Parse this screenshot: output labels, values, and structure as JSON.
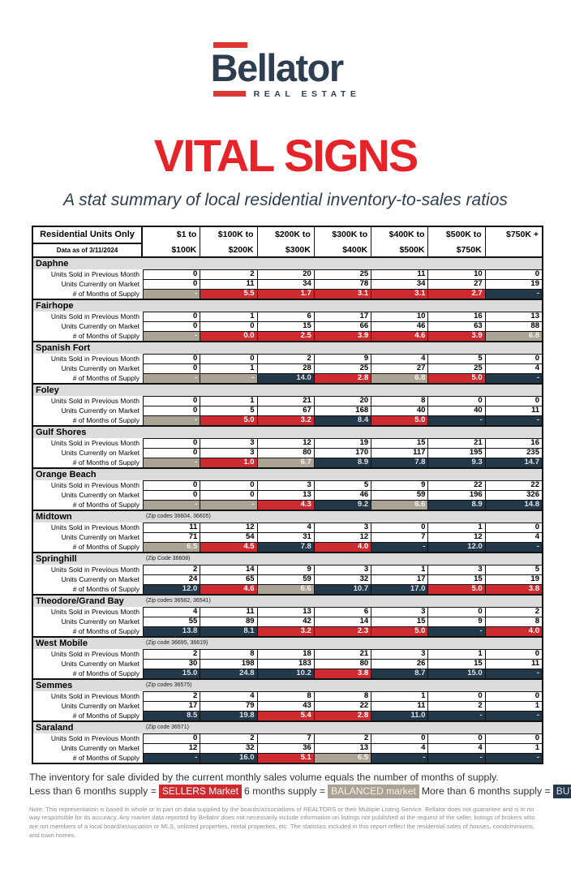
{
  "logo": {
    "brand": "Bellator",
    "tagline": "REAL ESTATE",
    "red": "#DB3832",
    "navy": "#2D3E50"
  },
  "title": "VITAL SIGNS",
  "title_color": "#E62329",
  "subtitle": "A stat summary of local residential inventory-to-sales ratios",
  "table": {
    "corner_line1": "Residential Units Only",
    "corner_line2": "Data as of 3/11/2024",
    "price_columns": [
      [
        "$1 to",
        "$100K"
      ],
      [
        "$100K to",
        "$200K"
      ],
      [
        "$200K to",
        "$300K"
      ],
      [
        "$300K to",
        "$400K"
      ],
      [
        "$400K to",
        "$500K"
      ],
      [
        "$500K to",
        "$750K"
      ],
      [
        "$750K +",
        ""
      ]
    ],
    "row_labels": [
      "Units Sold in Previous Month",
      "Units Currently on Market",
      "# of Months of Supply"
    ],
    "colors": {
      "sellers": "#CE2B30",
      "balanced": "#ABA393",
      "buyers": "#233849",
      "region_header_bg": "#DCDCDC"
    },
    "regions": [
      {
        "name": "Daphne",
        "zip": "",
        "sold": [
          "0",
          "2",
          "20",
          "25",
          "11",
          "10",
          "0"
        ],
        "market": [
          "0",
          "11",
          "34",
          "78",
          "34",
          "27",
          "19"
        ],
        "supply": [
          "-",
          "5.5",
          "1.7",
          "3.1",
          "3.1",
          "2.7",
          "-"
        ],
        "supply_status": [
          "balanced",
          "sellers",
          "sellers",
          "sellers",
          "sellers",
          "sellers",
          "buyers"
        ]
      },
      {
        "name": "Fairhope",
        "zip": "",
        "sold": [
          "0",
          "1",
          "6",
          "17",
          "10",
          "16",
          "13"
        ],
        "market": [
          "0",
          "0",
          "15",
          "66",
          "46",
          "63",
          "88"
        ],
        "supply": [
          "-",
          "0.0",
          "2.5",
          "3.9",
          "4.6",
          "3.9",
          "6.8"
        ],
        "supply_status": [
          "balanced",
          "sellers",
          "sellers",
          "sellers",
          "sellers",
          "sellers",
          "balanced"
        ]
      },
      {
        "name": "Spanish Fort",
        "zip": "",
        "sold": [
          "0",
          "0",
          "2",
          "9",
          "4",
          "5",
          "0"
        ],
        "market": [
          "0",
          "1",
          "28",
          "25",
          "27",
          "25",
          "4"
        ],
        "supply": [
          "-",
          "-",
          "14.0",
          "2.8",
          "6.8",
          "5.0",
          "-"
        ],
        "supply_status": [
          "balanced",
          "balanced",
          "buyers",
          "sellers",
          "balanced",
          "sellers",
          "buyers"
        ]
      },
      {
        "name": "Foley",
        "zip": "",
        "sold": [
          "0",
          "1",
          "21",
          "20",
          "8",
          "0",
          "0"
        ],
        "market": [
          "0",
          "5",
          "67",
          "168",
          "40",
          "40",
          "11"
        ],
        "supply": [
          "-",
          "5.0",
          "3.2",
          "8.4",
          "5.0",
          "-",
          "-"
        ],
        "supply_status": [
          "balanced",
          "sellers",
          "sellers",
          "buyers",
          "sellers",
          "buyers",
          "buyers"
        ]
      },
      {
        "name": "Gulf Shores",
        "zip": "",
        "sold": [
          "0",
          "3",
          "12",
          "19",
          "15",
          "21",
          "16"
        ],
        "market": [
          "0",
          "3",
          "80",
          "170",
          "117",
          "195",
          "235"
        ],
        "supply": [
          "-",
          "1.0",
          "6.7",
          "8.9",
          "7.8",
          "9.3",
          "14.7"
        ],
        "supply_status": [
          "balanced",
          "sellers",
          "balanced",
          "buyers",
          "buyers",
          "buyers",
          "buyers"
        ]
      },
      {
        "name": "Orange Beach",
        "zip": "",
        "sold": [
          "0",
          "0",
          "3",
          "5",
          "9",
          "22",
          "22"
        ],
        "market": [
          "0",
          "0",
          "13",
          "46",
          "59",
          "196",
          "326"
        ],
        "supply": [
          "-",
          "-",
          "4.3",
          "9.2",
          "6.6",
          "8.9",
          "14.8"
        ],
        "supply_status": [
          "balanced",
          "balanced",
          "sellers",
          "buyers",
          "balanced",
          "buyers",
          "buyers"
        ]
      },
      {
        "name": "Midtown",
        "zip": "(Zip codes 36604, 36605)",
        "sold": [
          "11",
          "12",
          "4",
          "3",
          "0",
          "1",
          "0"
        ],
        "market": [
          "71",
          "54",
          "31",
          "12",
          "7",
          "12",
          "4"
        ],
        "supply": [
          "6.5",
          "4.5",
          "7.8",
          "4.0",
          "-",
          "12.0",
          "-"
        ],
        "supply_status": [
          "balanced",
          "sellers",
          "buyers",
          "sellers",
          "buyers",
          "buyers",
          "buyers"
        ]
      },
      {
        "name": "Springhill",
        "zip": "(Zip Code 36608)",
        "sold": [
          "2",
          "14",
          "9",
          "3",
          "1",
          "3",
          "5"
        ],
        "market": [
          "24",
          "65",
          "59",
          "32",
          "17",
          "15",
          "19"
        ],
        "supply": [
          "12.0",
          "4.6",
          "6.6",
          "10.7",
          "17.0",
          "5.0",
          "3.8"
        ],
        "supply_status": [
          "buyers",
          "sellers",
          "balanced",
          "buyers",
          "buyers",
          "sellers",
          "sellers"
        ]
      },
      {
        "name": "Theodore/Grand Bay",
        "zip": "(Zip codes 36582, 36541)",
        "sold": [
          "4",
          "11",
          "13",
          "6",
          "3",
          "0",
          "2"
        ],
        "market": [
          "55",
          "89",
          "42",
          "14",
          "15",
          "9",
          "8"
        ],
        "supply": [
          "13.8",
          "8.1",
          "3.2",
          "2.3",
          "5.0",
          "-",
          "4.0"
        ],
        "supply_status": [
          "buyers",
          "buyers",
          "sellers",
          "sellers",
          "sellers",
          "buyers",
          "sellers"
        ]
      },
      {
        "name": "West Mobile",
        "zip": "(Zip code 36695, 36619)",
        "sold": [
          "2",
          "8",
          "18",
          "21",
          "3",
          "1",
          "0"
        ],
        "market": [
          "30",
          "198",
          "183",
          "80",
          "26",
          "15",
          "11"
        ],
        "supply": [
          "15.0",
          "24.8",
          "10.2",
          "3.8",
          "8.7",
          "15.0",
          "-"
        ],
        "supply_status": [
          "buyers",
          "buyers",
          "buyers",
          "sellers",
          "buyers",
          "buyers",
          "buyers"
        ]
      },
      {
        "name": "Semmes",
        "zip": "(Zip codes 36575)",
        "sold": [
          "2",
          "4",
          "8",
          "8",
          "1",
          "0",
          "0"
        ],
        "market": [
          "17",
          "79",
          "43",
          "22",
          "11",
          "2",
          "1"
        ],
        "supply": [
          "8.5",
          "19.8",
          "5.4",
          "2.8",
          "11.0",
          "-",
          "-"
        ],
        "supply_status": [
          "buyers",
          "buyers",
          "sellers",
          "sellers",
          "buyers",
          "buyers",
          "buyers"
        ]
      },
      {
        "name": "Saraland",
        "zip": "(Zip code 36571)",
        "sold": [
          "0",
          "2",
          "7",
          "2",
          "0",
          "0",
          "0"
        ],
        "market": [
          "12",
          "32",
          "36",
          "13",
          "4",
          "4",
          "1"
        ],
        "supply": [
          "-",
          "16.0",
          "5.1",
          "6.5",
          "-",
          "-",
          "-"
        ],
        "supply_status": [
          "buyers",
          "buyers",
          "sellers",
          "balanced",
          "buyers",
          "buyers",
          "buyers"
        ]
      }
    ]
  },
  "legend": {
    "line1": "The inventory for sale divided by the current monthly sales volume equals the number of months of supply.",
    "sellers_prefix": "Less than 6 months supply =",
    "sellers_label": "SELLERS Market",
    "balanced_prefix": "6 months supply =",
    "balanced_label": "BALANCED market",
    "buyers_prefix": " More than 6 months supply =",
    "buyers_label": "BUYERS Market"
  },
  "note": "Note: This representation is based in whole or in part on data supplied by the boards/associations of REALTORS or their Multiple Listing Service. Bellator does not guarantee and is in no way responsible for its accuracy. Any market data reported by Bellator does not necessarily include information on listings not published at the request of the seller, listings of brokers who are not members of a local board/association or MLS, unlisted properties, rental properties, etc. The statistics included in this report reflect the residential sales of houses, condominiums, and town homes."
}
